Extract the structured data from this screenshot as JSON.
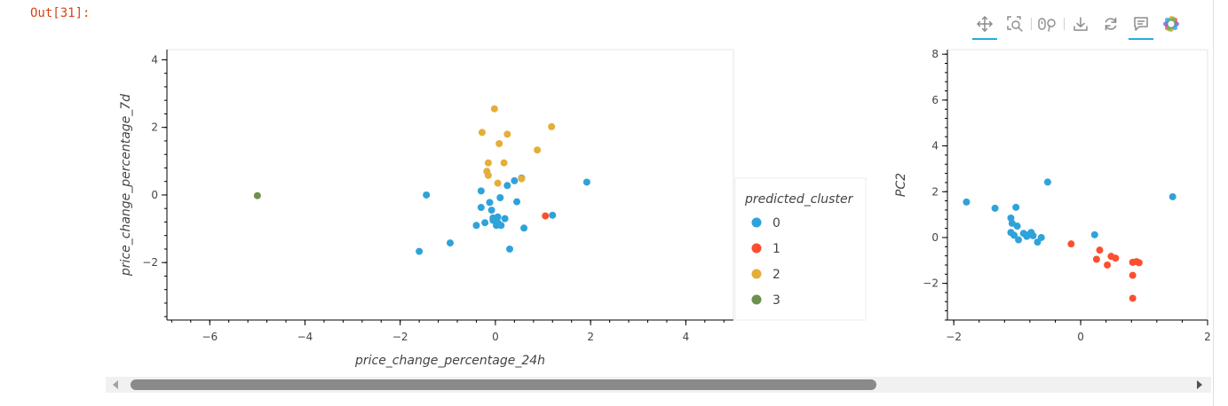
{
  "cell": {
    "output_prompt": "Out[31]:"
  },
  "toolbar": {
    "tools": [
      {
        "name": "pan-tool",
        "icon": "move-icon",
        "active": true
      },
      {
        "name": "box-zoom-tool",
        "icon": "box-zoom-icon",
        "active": false
      },
      {
        "name": "wheel-zoom-tool",
        "icon": "wheel-zoom-icon",
        "active": false
      },
      {
        "name": "save-tool",
        "icon": "download-icon",
        "active": false
      },
      {
        "name": "reset-tool",
        "icon": "refresh-icon",
        "active": false
      },
      {
        "name": "hover-tool",
        "icon": "tooltip-icon",
        "active": true
      },
      {
        "name": "bokeh-logo",
        "icon": "bokeh-logo-icon",
        "active": false
      }
    ]
  },
  "colors": {
    "cluster_0": "#30a2da",
    "cluster_1": "#fc4f30",
    "cluster_2": "#e5ae38",
    "cluster_3": "#6d904f",
    "toolbar_active": "#26aae1",
    "prompt": "#d84315"
  },
  "chart_data": [
    {
      "type": "scatter",
      "xlabel": "price_change_percentage_24h",
      "ylabel": "price_change_percentage_7d",
      "xlim": [
        -6.9,
        5.0
      ],
      "ylim": [
        -3.7,
        4.3
      ],
      "x_ticks": [
        -6,
        -4,
        -2,
        0,
        2,
        4
      ],
      "x_tick_labels": [
        "−6",
        "−4",
        "−2",
        "0",
        "2",
        "4"
      ],
      "y_ticks": [
        -2,
        0,
        2,
        4
      ],
      "y_tick_labels": [
        "−2",
        "0",
        "2",
        "4"
      ],
      "grid": false,
      "legend": {
        "title": "predicted_cluster",
        "position": "right",
        "entries": [
          "0",
          "1",
          "2",
          "3"
        ]
      },
      "series": [
        {
          "name": "0",
          "points": [
            [
              -1.6,
              -1.67
            ],
            [
              -1.45,
              0.0
            ],
            [
              -0.95,
              -1.42
            ],
            [
              -0.4,
              -0.9
            ],
            [
              -0.3,
              0.12
            ],
            [
              -0.3,
              -0.37
            ],
            [
              -0.22,
              -0.82
            ],
            [
              -0.12,
              -0.22
            ],
            [
              -0.08,
              -0.45
            ],
            [
              -0.05,
              -0.75
            ],
            [
              0.0,
              -0.72
            ],
            [
              0.02,
              -0.9
            ],
            [
              0.05,
              -0.65
            ],
            [
              0.1,
              -0.08
            ],
            [
              0.12,
              -0.9
            ],
            [
              0.2,
              -0.7
            ],
            [
              0.25,
              0.28
            ],
            [
              0.3,
              -1.6
            ],
            [
              0.4,
              0.42
            ],
            [
              0.45,
              -0.2
            ],
            [
              0.55,
              0.5
            ],
            [
              0.6,
              -0.98
            ],
            [
              1.2,
              -0.6
            ],
            [
              1.92,
              0.38
            ],
            [
              0.05,
              -0.82
            ],
            [
              -0.05,
              -0.68
            ]
          ]
        },
        {
          "name": "1",
          "points": [
            [
              1.05,
              -0.62
            ]
          ]
        },
        {
          "name": "2",
          "points": [
            [
              -0.02,
              2.55
            ],
            [
              -0.28,
              1.85
            ],
            [
              0.25,
              1.8
            ],
            [
              0.08,
              1.52
            ],
            [
              1.18,
              2.02
            ],
            [
              0.88,
              1.33
            ],
            [
              -0.15,
              0.95
            ],
            [
              0.18,
              0.95
            ],
            [
              -0.18,
              0.7
            ],
            [
              -0.15,
              0.58
            ],
            [
              0.05,
              0.35
            ],
            [
              0.55,
              0.48
            ]
          ]
        },
        {
          "name": "3",
          "points": [
            [
              -5.0,
              -0.02
            ]
          ]
        }
      ]
    },
    {
      "type": "scatter",
      "xlabel": "",
      "ylabel": "PC2",
      "xlim": [
        -2.1,
        2.0
      ],
      "ylim": [
        -3.6,
        8.2
      ],
      "x_ticks": [
        -2,
        0,
        2
      ],
      "x_tick_labels": [
        "−2",
        "0",
        "2"
      ],
      "y_ticks": [
        -2,
        0,
        2,
        4,
        6,
        8
      ],
      "y_tick_labels": [
        "−2",
        "0",
        "2",
        "4",
        "6",
        "8"
      ],
      "grid": false,
      "series": [
        {
          "name": "0",
          "points": [
            [
              -1.8,
              1.55
            ],
            [
              -1.35,
              1.28
            ],
            [
              -1.1,
              0.85
            ],
            [
              -1.08,
              0.62
            ],
            [
              -1.02,
              1.32
            ],
            [
              -1.0,
              0.5
            ],
            [
              -1.1,
              0.22
            ],
            [
              -1.05,
              0.1
            ],
            [
              -0.98,
              -0.1
            ],
            [
              -0.9,
              0.18
            ],
            [
              -0.85,
              0.05
            ],
            [
              -0.82,
              0.12
            ],
            [
              -0.78,
              0.22
            ],
            [
              -0.75,
              0.08
            ],
            [
              -0.68,
              -0.2
            ],
            [
              -0.62,
              0.0
            ],
            [
              -0.52,
              2.42
            ],
            [
              0.22,
              0.12
            ],
            [
              1.45,
              1.78
            ]
          ]
        },
        {
          "name": "1",
          "points": [
            [
              -0.15,
              -0.28
            ],
            [
              0.25,
              -0.95
            ],
            [
              0.3,
              -0.55
            ],
            [
              0.42,
              -1.2
            ],
            [
              0.48,
              -0.82
            ],
            [
              0.55,
              -0.9
            ],
            [
              0.82,
              -1.08
            ],
            [
              0.88,
              -1.05
            ],
            [
              0.92,
              -1.1
            ],
            [
              0.82,
              -1.65
            ],
            [
              0.82,
              -2.65
            ]
          ]
        }
      ]
    }
  ]
}
